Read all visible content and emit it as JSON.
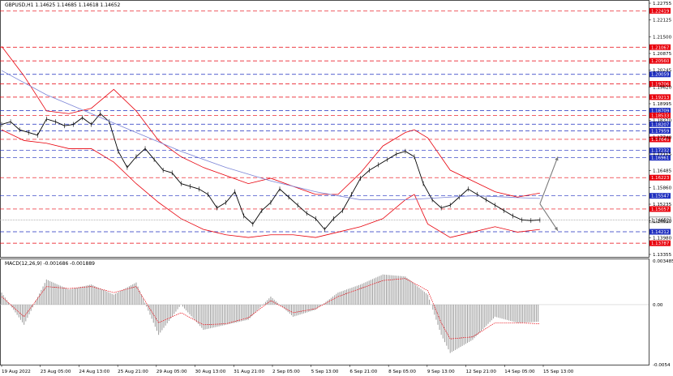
{
  "chart_data": [
    {
      "type": "line",
      "title": "GBPUSD,H1  1.14625 1.14685 1.14618 1.14652",
      "y_ticks": [
        "1.22755",
        "1.22125",
        "1.21500",
        "1.20875",
        "1.20245",
        "1.19620",
        "1.18995",
        "1.18370",
        "1.17740",
        "1.17115",
        "1.16485",
        "1.15860",
        "1.15235",
        "1.14610",
        "1.13980",
        "1.13355"
      ],
      "ylim": [
        1.1331,
        1.2276
      ],
      "x_ticks": [
        "19 Aug 2022",
        "23 Aug 05:00",
        "24 Aug 13:00",
        "25 Aug 21:00",
        "29 Aug 05:00",
        "30 Aug 13:00",
        "31 Aug 21:00",
        "2 Sep 05:00",
        "5 Sep 13:00",
        "6 Sep 21:00",
        "8 Sep 05:00",
        "9 Sep 13:00",
        "12 Sep 21:00",
        "14 Sep 05:00",
        "15 Sep 13:00"
      ],
      "levels": [
        {
          "label": "1.22419",
          "value": 1.22419,
          "color": "#e8000b"
        },
        {
          "label": "1.21067",
          "value": 1.21067,
          "color": "#e8000b"
        },
        {
          "label": "1.20560",
          "value": 1.2056,
          "color": "#e8000b"
        },
        {
          "label": "1.20059",
          "value": 1.20059,
          "color": "#1f2fbf"
        },
        {
          "label": "1.19706",
          "value": 1.19706,
          "color": "#e8000b"
        },
        {
          "label": "1.19213",
          "value": 1.19213,
          "color": "#e8000b"
        },
        {
          "label": "1.18709",
          "value": 1.18709,
          "color": "#1f2fbf"
        },
        {
          "label": "1.18533",
          "value": 1.18533,
          "color": "#e8000b"
        },
        {
          "label": "1.18207",
          "value": 1.18207,
          "color": "#1f2fbf"
        },
        {
          "label": "1.17959",
          "value": 1.17959,
          "color": "#1f2fbf"
        },
        {
          "label": "1.17645",
          "value": 1.17645,
          "color": "#e8000b"
        },
        {
          "label": "1.17232",
          "value": 1.17232,
          "color": "#1f2fbf"
        },
        {
          "label": "1.16961",
          "value": 1.16961,
          "color": "#1f2fbf"
        },
        {
          "label": "1.16223",
          "value": 1.16223,
          "color": "#e8000b"
        },
        {
          "label": "1.15547",
          "value": 1.15547,
          "color": "#1f2fbf"
        },
        {
          "label": "1.15057",
          "value": 1.15057,
          "color": "#e8000b"
        },
        {
          "label": "1.14652",
          "value": 1.14652,
          "color": "#ffffff"
        },
        {
          "label": "1.14212",
          "value": 1.14212,
          "color": "#1f2fbf"
        },
        {
          "label": "1.13787",
          "value": 1.13787,
          "color": "#e8000b"
        }
      ],
      "series": [
        {
          "key": "price",
          "color": "#000000",
          "x": [
            0,
            2,
            4,
            6,
            8,
            10,
            12,
            14,
            16,
            18,
            20,
            22,
            24,
            26,
            28,
            30,
            32,
            34,
            36,
            38,
            40,
            42,
            44,
            46,
            48,
            50,
            52,
            54,
            56,
            58,
            60,
            62,
            64,
            66,
            68,
            70,
            72,
            74,
            76,
            78,
            80,
            82,
            84,
            86,
            88,
            90,
            92,
            94,
            96,
            98,
            100,
            102,
            104,
            106,
            108,
            110,
            112,
            114,
            116,
            118,
            120
          ],
          "y": [
            1.182,
            1.183,
            1.18,
            1.179,
            1.178,
            1.184,
            1.183,
            1.1815,
            1.182,
            1.1845,
            1.182,
            1.186,
            1.183,
            1.172,
            1.166,
            1.17,
            1.173,
            1.169,
            1.165,
            1.164,
            1.16,
            1.159,
            1.158,
            1.156,
            1.151,
            1.153,
            1.157,
            1.148,
            1.145,
            1.15,
            1.153,
            1.158,
            1.155,
            1.152,
            1.149,
            1.147,
            1.143,
            1.147,
            1.15,
            1.156,
            1.162,
            1.165,
            1.167,
            1.169,
            1.171,
            1.172,
            1.17,
            1.16,
            1.154,
            1.151,
            1.152,
            1.155,
            1.158,
            1.156,
            1.154,
            1.152,
            1.15,
            1.148,
            1.1465,
            1.1463,
            1.1465
          ]
        },
        {
          "key": "bb_upper",
          "color": "#e8000b",
          "x": [
            0,
            5,
            10,
            15,
            20,
            25,
            30,
            35,
            40,
            45,
            50,
            55,
            60,
            65,
            70,
            75,
            80,
            85,
            90,
            92,
            95,
            100,
            105,
            110,
            115,
            120
          ],
          "y": [
            1.211,
            1.2,
            1.187,
            1.186,
            1.188,
            1.195,
            1.187,
            1.176,
            1.17,
            1.166,
            1.163,
            1.16,
            1.162,
            1.159,
            1.156,
            1.156,
            1.164,
            1.174,
            1.179,
            1.18,
            1.177,
            1.165,
            1.161,
            1.157,
            1.155,
            1.1565
          ]
        },
        {
          "key": "bb_lower",
          "color": "#e8000b",
          "x": [
            0,
            5,
            10,
            15,
            20,
            25,
            30,
            35,
            40,
            45,
            50,
            55,
            60,
            65,
            70,
            75,
            80,
            85,
            90,
            92,
            95,
            100,
            105,
            110,
            115,
            120
          ],
          "y": [
            1.18,
            1.176,
            1.175,
            1.173,
            1.173,
            1.168,
            1.16,
            1.153,
            1.147,
            1.143,
            1.141,
            1.14,
            1.141,
            1.141,
            1.14,
            1.142,
            1.144,
            1.147,
            1.154,
            1.156,
            1.145,
            1.14,
            1.142,
            1.144,
            1.142,
            1.143
          ]
        },
        {
          "key": "ma",
          "color": "#7b84d6",
          "x": [
            0,
            10,
            20,
            30,
            40,
            50,
            60,
            70,
            80,
            90,
            95,
            100,
            105,
            110,
            115,
            120
          ],
          "y": [
            1.202,
            1.193,
            1.186,
            1.179,
            1.172,
            1.166,
            1.161,
            1.157,
            1.154,
            1.154,
            1.1545,
            1.155,
            1.1555,
            1.1552,
            1.1548,
            1.1545
          ]
        }
      ],
      "projections": [
        {
          "from": [
            120,
            1.1525
          ],
          "to": [
            124,
            1.17
          ],
          "color": "#7a7a7a"
        },
        {
          "from": [
            120,
            1.1525
          ],
          "to": [
            124,
            1.1425
          ],
          "color": "#7a7a7a"
        }
      ]
    },
    {
      "type": "bar",
      "title": "MACD(12,26,9) -0.001686 -0.001889",
      "y_ticks": [
        "0.003485",
        "0.00",
        "-0.0054"
      ],
      "ylim": [
        -0.0058,
        0.0037
      ],
      "series": [
        {
          "key": "histogram",
          "color": "#9a9a9a",
          "x": [
            0,
            5,
            10,
            15,
            20,
            25,
            30,
            35,
            40,
            45,
            50,
            55,
            60,
            65,
            70,
            75,
            80,
            85,
            90,
            95,
            98,
            100,
            105,
            110,
            115,
            120
          ],
          "y": [
            0.0012,
            -0.002,
            0.0025,
            0.0015,
            0.002,
            0.001,
            0.0022,
            -0.003,
            0.0,
            -0.0025,
            -0.002,
            -0.0015,
            0.0008,
            -0.0012,
            -0.0005,
            0.0012,
            0.002,
            0.003,
            0.0028,
            0.001,
            -0.003,
            -0.0048,
            -0.0035,
            -0.0012,
            -0.0018,
            -0.0017
          ]
        },
        {
          "key": "signal",
          "color": "#e8000b",
          "x": [
            0,
            5,
            10,
            15,
            20,
            25,
            30,
            35,
            40,
            45,
            50,
            55,
            60,
            65,
            70,
            75,
            80,
            85,
            90,
            95,
            98,
            100,
            105,
            110,
            115,
            120
          ],
          "y": [
            0.0008,
            -0.0012,
            0.0018,
            0.0016,
            0.0018,
            0.0012,
            0.0018,
            -0.0018,
            -0.0008,
            -0.002,
            -0.0019,
            -0.0013,
            0.0004,
            -0.0008,
            -0.0004,
            0.0008,
            0.0016,
            0.0024,
            0.0026,
            0.0014,
            -0.0018,
            -0.0034,
            -0.0032,
            -0.0018,
            -0.0018,
            -0.0019
          ]
        }
      ]
    }
  ]
}
